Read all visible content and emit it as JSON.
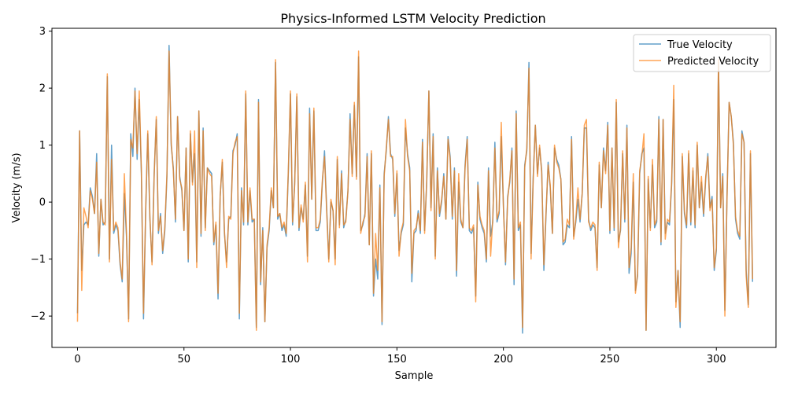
{
  "chart_data": {
    "type": "line",
    "title": "Physics-Informed LSTM Velocity Prediction",
    "xlabel": "Sample",
    "ylabel": "Velocity (m/s)",
    "xlim": [
      -12,
      328
    ],
    "ylim": [
      -2.55,
      3.05
    ],
    "xticks": [
      0,
      50,
      100,
      150,
      200,
      250,
      300
    ],
    "yticks": [
      -2,
      -1,
      0,
      1,
      2,
      3
    ],
    "grid": false,
    "legend_position": "top-right",
    "series": [
      {
        "name": "True Velocity",
        "color": "#1f77b4",
        "values": [
          -1.95,
          1.25,
          -1.2,
          -0.4,
          -0.35,
          -0.4,
          0.25,
          0.1,
          -0.2,
          0.85,
          -0.95,
          0.05,
          -0.4,
          -0.35,
          2.2,
          -1.0,
          1.0,
          -0.55,
          -0.4,
          -0.5,
          -1.1,
          -1.4,
          0.15,
          -0.6,
          -2.05,
          1.2,
          0.8,
          2.0,
          0.75,
          1.8,
          0.5,
          -2.05,
          -0.2,
          1.2,
          -0.3,
          -1.05,
          0.5,
          1.45,
          -0.55,
          -0.2,
          -0.9,
          -0.5,
          0.45,
          2.75,
          1.0,
          0.6,
          -0.35,
          1.5,
          0.45,
          0.2,
          -0.5,
          0.95,
          -1.05,
          1.2,
          0.35,
          0.85,
          -1.05,
          1.6,
          -0.6,
          1.3,
          -0.45,
          0.6,
          0.55,
          0.5,
          -0.75,
          -0.4,
          -1.7,
          0.1,
          0.7,
          -0.55,
          -1.05,
          -0.3,
          -0.25,
          0.9,
          1.0,
          1.2,
          -2.05,
          0.25,
          -0.4,
          1.9,
          -0.4,
          0.2,
          -0.35,
          -0.3,
          -2.2,
          1.8,
          -1.45,
          -0.45,
          -2.1,
          -0.8,
          -0.5,
          0.2,
          -0.1,
          2.45,
          -0.3,
          -0.2,
          -0.5,
          -0.4,
          -0.6,
          0.5,
          1.9,
          -0.4,
          0.35,
          1.85,
          -0.5,
          -0.1,
          -0.3,
          0.3,
          -0.95,
          1.65,
          0.05,
          1.6,
          -0.5,
          -0.5,
          -0.35,
          0.35,
          0.9,
          -0.1,
          -1.0,
          0.0,
          -0.15,
          -1.0,
          0.75,
          -0.4,
          0.55,
          -0.45,
          -0.3,
          0.2,
          1.55,
          0.5,
          1.7,
          0.45,
          2.55,
          -0.5,
          -0.4,
          -0.2,
          0.85,
          -0.75,
          0.85,
          -1.65,
          -1.0,
          -1.35,
          0.3,
          -2.15,
          0.5,
          0.9,
          1.5,
          0.85,
          0.75,
          -0.25,
          0.5,
          -0.85,
          -0.55,
          -0.4,
          1.3,
          0.85,
          0.6,
          -1.4,
          -0.55,
          -0.5,
          -0.15,
          -0.55,
          1.1,
          -0.5,
          0.35,
          1.95,
          -0.1,
          1.2,
          -0.95,
          0.6,
          -0.25,
          0.0,
          0.5,
          -0.3,
          1.15,
          0.8,
          -0.3,
          0.6,
          -1.3,
          0.35,
          -0.35,
          -0.45,
          0.65,
          1.15,
          -0.5,
          -0.55,
          -0.45,
          -1.65,
          0.35,
          -0.3,
          -0.45,
          -0.55,
          -1.05,
          0.6,
          -0.6,
          -0.35,
          1.05,
          -0.35,
          -0.2,
          1.15,
          -0.05,
          -1.1,
          0.1,
          0.35,
          0.95,
          -1.45,
          1.6,
          -0.5,
          -0.4,
          -2.3,
          0.65,
          0.9,
          2.45,
          -0.9,
          0.45,
          1.35,
          0.5,
          0.95,
          0.55,
          -1.2,
          -0.25,
          0.7,
          0.25,
          -0.55,
          0.95,
          0.75,
          0.65,
          0.4,
          -0.75,
          -0.7,
          -0.4,
          -0.45,
          1.15,
          -0.6,
          -0.35,
          0.05,
          -0.35,
          0.15,
          1.3,
          1.3,
          -0.3,
          -0.5,
          -0.4,
          -0.45,
          -1.15,
          0.65,
          -0.1,
          0.95,
          0.55,
          1.4,
          -0.55,
          0.95,
          -0.5,
          1.75,
          -0.7,
          -0.5,
          0.85,
          -0.35,
          1.35,
          -1.25,
          -0.9,
          0.35,
          -1.55,
          -1.3,
          0.5,
          0.85,
          0.95,
          -2.25,
          0.4,
          -0.45,
          0.65,
          -0.45,
          -0.35,
          1.5,
          -0.75,
          1.45,
          -0.55,
          -0.35,
          -0.4,
          0.3,
          1.8,
          -1.75,
          -1.2,
          -2.2,
          0.8,
          -0.2,
          -0.45,
          0.85,
          -0.4,
          0.55,
          -0.45,
          1.0,
          -0.1,
          0.35,
          -0.25,
          0.4,
          0.85,
          -0.1,
          0.1,
          -1.2,
          -0.85,
          2.45,
          -0.1,
          0.5,
          -1.9,
          0.1,
          1.75,
          1.5,
          1.05,
          -0.3,
          -0.55,
          -0.65,
          1.25,
          1.05,
          -1.2,
          -1.8,
          0.85,
          -1.4
        ]
      },
      {
        "name": "Predicted Velocity",
        "color": "#ff7f0e",
        "values": [
          -2.1,
          1.25,
          -1.55,
          -0.1,
          -0.25,
          -0.45,
          0.2,
          0.05,
          -0.2,
          0.7,
          -0.9,
          0.05,
          -0.35,
          -0.4,
          2.25,
          -1.05,
          0.75,
          -0.5,
          -0.35,
          -0.45,
          -1.05,
          -1.35,
          0.5,
          -0.55,
          -2.1,
          1.1,
          0.95,
          1.95,
          0.85,
          1.95,
          0.55,
          -1.95,
          -0.15,
          1.25,
          -0.25,
          -1.1,
          0.45,
          1.5,
          -0.5,
          -0.25,
          -0.85,
          -0.45,
          0.5,
          2.65,
          1.05,
          0.55,
          -0.3,
          1.5,
          0.4,
          0.25,
          -0.5,
          0.95,
          -1.0,
          1.25,
          0.3,
          1.25,
          -1.15,
          1.6,
          -0.55,
          1.25,
          -0.5,
          0.6,
          0.5,
          0.45,
          -0.7,
          -0.35,
          -1.6,
          0.1,
          0.75,
          -0.5,
          -1.15,
          -0.25,
          -0.3,
          0.85,
          1.05,
          1.15,
          -1.95,
          0.2,
          -0.35,
          1.95,
          -0.35,
          0.25,
          -0.3,
          -0.3,
          -2.25,
          1.75,
          -1.4,
          -0.5,
          -2.1,
          -0.75,
          -0.45,
          0.25,
          -0.1,
          2.5,
          -0.25,
          -0.2,
          -0.45,
          -0.35,
          -0.55,
          0.55,
          1.95,
          -0.35,
          0.3,
          1.9,
          -0.45,
          -0.05,
          -0.35,
          0.35,
          -1.05,
          1.55,
          0.05,
          1.65,
          -0.45,
          -0.45,
          -0.3,
          0.4,
          0.8,
          -0.15,
          -1.05,
          0.05,
          -0.15,
          -1.1,
          0.8,
          -0.45,
          0.5,
          -0.4,
          -0.35,
          0.2,
          1.45,
          0.45,
          1.75,
          0.4,
          2.65,
          -0.55,
          -0.35,
          -0.25,
          0.8,
          -0.75,
          0.9,
          -1.6,
          -0.55,
          -1.2,
          0.25,
          -2.1,
          0.45,
          0.95,
          1.45,
          0.8,
          0.8,
          -0.2,
          0.55,
          -0.95,
          -0.5,
          -0.35,
          1.45,
          0.8,
          0.55,
          -1.25,
          -0.5,
          -0.45,
          -0.2,
          -0.5,
          1.05,
          -0.55,
          0.4,
          1.95,
          -0.15,
          1.15,
          -1.0,
          0.55,
          -0.2,
          0.05,
          0.45,
          -0.3,
          1.1,
          0.75,
          -0.25,
          0.55,
          -1.2,
          0.5,
          -0.3,
          -0.45,
          0.6,
          1.1,
          -0.45,
          -0.5,
          -0.4,
          -1.75,
          0.3,
          -0.25,
          -0.4,
          -0.5,
          -1.0,
          0.55,
          -0.95,
          -0.3,
          0.95,
          -0.3,
          -0.15,
          1.4,
          -0.1,
          -1.05,
          0.05,
          0.4,
          0.9,
          -1.35,
          1.55,
          -0.45,
          -0.35,
          -2.2,
          0.6,
          0.95,
          2.35,
          -1.0,
          0.4,
          1.35,
          0.45,
          1.0,
          0.5,
          -1.1,
          -0.2,
          0.65,
          0.3,
          -0.55,
          1.0,
          0.7,
          0.6,
          0.4,
          -0.7,
          -0.65,
          -0.3,
          -0.4,
          1.1,
          -0.65,
          -0.3,
          0.25,
          -0.3,
          0.15,
          1.35,
          1.45,
          -0.35,
          -0.45,
          -0.35,
          -0.4,
          -1.2,
          0.7,
          -0.1,
          0.9,
          0.5,
          1.35,
          -0.5,
          0.95,
          -0.45,
          1.8,
          -0.8,
          -0.45,
          0.9,
          -0.3,
          1.3,
          -1.15,
          -0.8,
          0.5,
          -1.6,
          -1.25,
          0.55,
          0.8,
          1.2,
          -2.25,
          0.45,
          -0.5,
          0.75,
          -0.4,
          -0.3,
          1.45,
          -0.7,
          1.45,
          -0.65,
          -0.3,
          -0.35,
          0.35,
          2.05,
          -1.85,
          -1.2,
          -2.1,
          0.85,
          -0.15,
          -0.4,
          0.9,
          -0.35,
          0.6,
          -0.4,
          1.05,
          -0.1,
          0.45,
          -0.2,
          0.45,
          0.8,
          -0.15,
          0.05,
          -1.15,
          -0.8,
          2.5,
          -0.1,
          0.45,
          -2.0,
          0.05,
          1.75,
          1.5,
          1.0,
          -0.25,
          -0.5,
          -0.6,
          1.2,
          1.05,
          -1.3,
          -1.85,
          0.9,
          -1.35
        ]
      }
    ]
  }
}
